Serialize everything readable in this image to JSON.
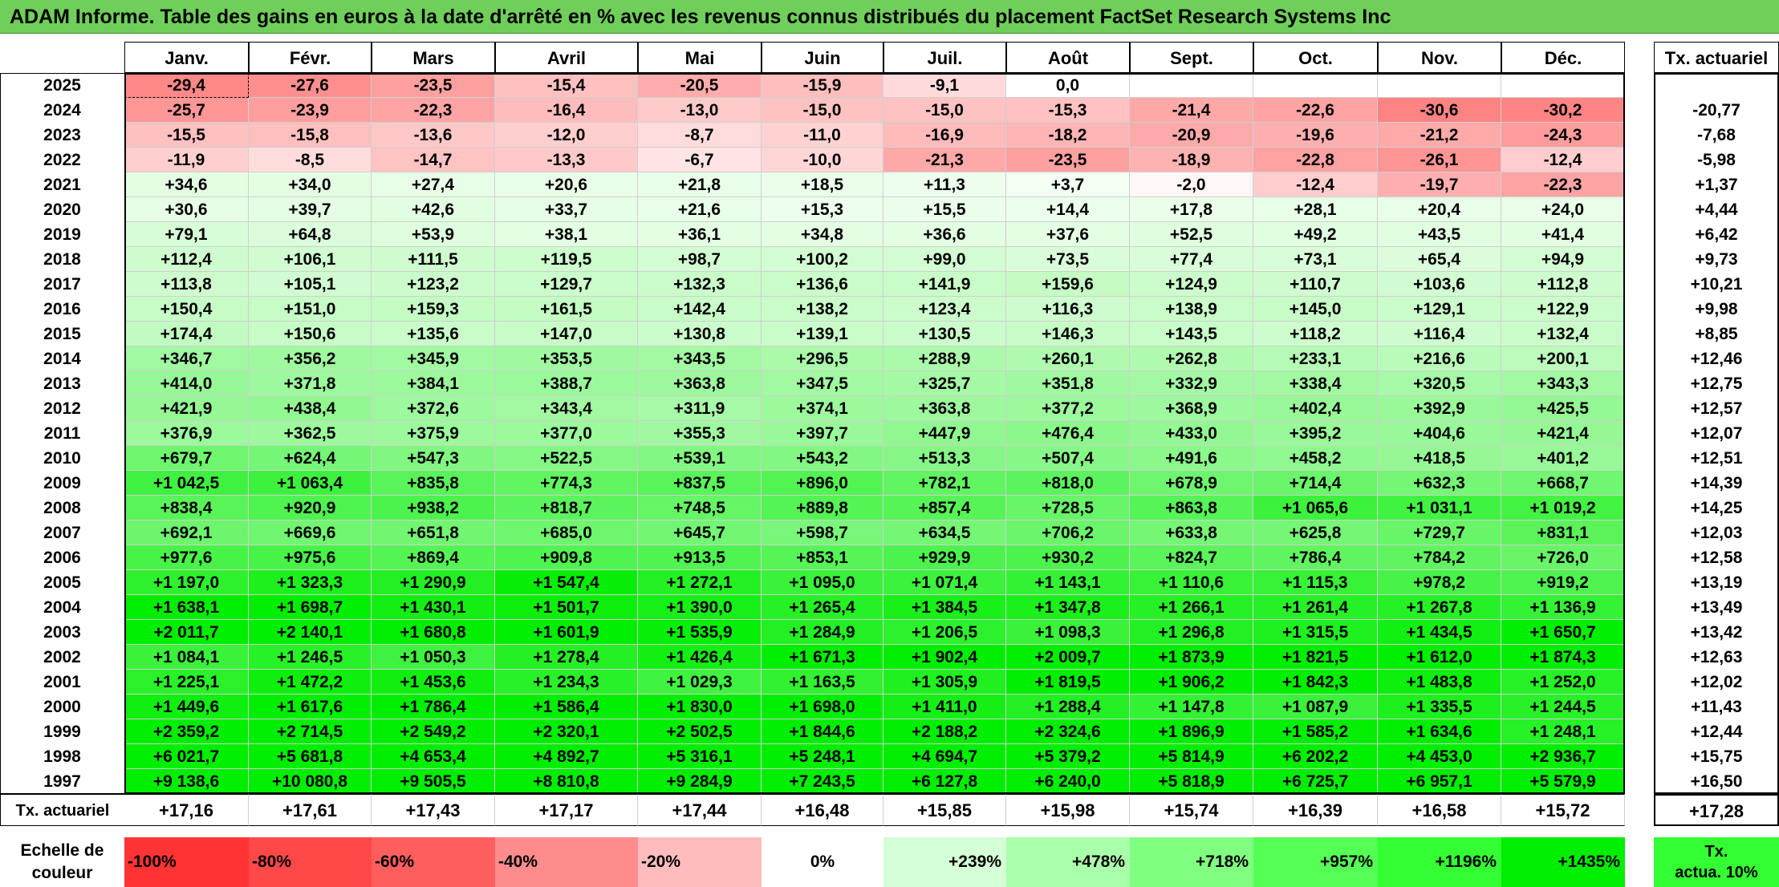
{
  "title": "ADAM Informe. Table des gains en euros à la date d'arrêté en % avec les revenus connus distribués du placement FactSet Research Systems Inc",
  "months": [
    "Janv.",
    "Févr.",
    "Mars",
    "Avril",
    "Mai",
    "Juin",
    "Juil.",
    "Août",
    "Sept.",
    "Oct.",
    "Nov.",
    "Déc."
  ],
  "tx_header": "Tx. actuariel",
  "rows": [
    {
      "year": "2025",
      "values": [
        "-29,4",
        "-27,6",
        "-23,5",
        "-15,4",
        "-20,5",
        "-15,9",
        "-9,1",
        "0,0",
        "",
        "",
        "",
        ""
      ],
      "tx": ""
    },
    {
      "year": "2024",
      "values": [
        "-25,7",
        "-23,9",
        "-22,3",
        "-16,4",
        "-13,0",
        "-15,0",
        "-15,0",
        "-15,3",
        "-21,4",
        "-22,6",
        "-30,6",
        "-30,2"
      ],
      "tx": "-20,77"
    },
    {
      "year": "2023",
      "values": [
        "-15,5",
        "-15,8",
        "-13,6",
        "-12,0",
        "-8,7",
        "-11,0",
        "-16,9",
        "-18,2",
        "-20,9",
        "-19,6",
        "-21,2",
        "-24,3"
      ],
      "tx": "-7,68"
    },
    {
      "year": "2022",
      "values": [
        "-11,9",
        "-8,5",
        "-14,7",
        "-13,3",
        "-6,7",
        "-10,0",
        "-21,3",
        "-23,5",
        "-18,9",
        "-22,8",
        "-26,1",
        "-12,4"
      ],
      "tx": "-5,98"
    },
    {
      "year": "2021",
      "values": [
        "+34,6",
        "+34,0",
        "+27,4",
        "+20,6",
        "+21,8",
        "+18,5",
        "+11,3",
        "+3,7",
        "-2,0",
        "-12,4",
        "-19,7",
        "-22,3"
      ],
      "tx": "+1,37"
    },
    {
      "year": "2020",
      "values": [
        "+30,6",
        "+39,7",
        "+42,6",
        "+33,7",
        "+21,6",
        "+15,3",
        "+15,5",
        "+14,4",
        "+17,8",
        "+28,1",
        "+20,4",
        "+24,0"
      ],
      "tx": "+4,44"
    },
    {
      "year": "2019",
      "values": [
        "+79,1",
        "+64,8",
        "+53,9",
        "+38,1",
        "+36,1",
        "+34,8",
        "+36,6",
        "+37,6",
        "+52,5",
        "+49,2",
        "+43,5",
        "+41,4"
      ],
      "tx": "+6,42"
    },
    {
      "year": "2018",
      "values": [
        "+112,4",
        "+106,1",
        "+111,5",
        "+119,5",
        "+98,7",
        "+100,2",
        "+99,0",
        "+73,5",
        "+77,4",
        "+73,1",
        "+65,4",
        "+94,9"
      ],
      "tx": "+9,73"
    },
    {
      "year": "2017",
      "values": [
        "+113,8",
        "+105,1",
        "+123,2",
        "+129,7",
        "+132,3",
        "+136,6",
        "+141,9",
        "+159,6",
        "+124,9",
        "+110,7",
        "+103,6",
        "+112,8"
      ],
      "tx": "+10,21"
    },
    {
      "year": "2016",
      "values": [
        "+150,4",
        "+151,0",
        "+159,3",
        "+161,5",
        "+142,4",
        "+138,2",
        "+123,4",
        "+116,3",
        "+138,9",
        "+145,0",
        "+129,1",
        "+122,9"
      ],
      "tx": "+9,98"
    },
    {
      "year": "2015",
      "values": [
        "+174,4",
        "+150,6",
        "+135,6",
        "+147,0",
        "+130,8",
        "+139,1",
        "+130,5",
        "+146,3",
        "+143,5",
        "+118,2",
        "+116,4",
        "+132,4"
      ],
      "tx": "+8,85"
    },
    {
      "year": "2014",
      "values": [
        "+346,7",
        "+356,2",
        "+345,9",
        "+353,5",
        "+343,5",
        "+296,5",
        "+288,9",
        "+260,1",
        "+262,8",
        "+233,1",
        "+216,6",
        "+200,1"
      ],
      "tx": "+12,46"
    },
    {
      "year": "2013",
      "values": [
        "+414,0",
        "+371,8",
        "+384,1",
        "+388,7",
        "+363,8",
        "+347,5",
        "+325,7",
        "+351,8",
        "+332,9",
        "+338,4",
        "+320,5",
        "+343,3"
      ],
      "tx": "+12,75"
    },
    {
      "year": "2012",
      "values": [
        "+421,9",
        "+438,4",
        "+372,6",
        "+343,4",
        "+311,9",
        "+374,1",
        "+363,8",
        "+377,2",
        "+368,9",
        "+402,4",
        "+392,9",
        "+425,5"
      ],
      "tx": "+12,57"
    },
    {
      "year": "2011",
      "values": [
        "+376,9",
        "+362,5",
        "+375,9",
        "+377,0",
        "+355,3",
        "+397,7",
        "+447,9",
        "+476,4",
        "+433,0",
        "+395,2",
        "+404,6",
        "+421,4"
      ],
      "tx": "+12,07"
    },
    {
      "year": "2010",
      "values": [
        "+679,7",
        "+624,4",
        "+547,3",
        "+522,5",
        "+539,1",
        "+543,2",
        "+513,3",
        "+507,4",
        "+491,6",
        "+458,2",
        "+418,5",
        "+401,2"
      ],
      "tx": "+12,51"
    },
    {
      "year": "2009",
      "values": [
        "+1 042,5",
        "+1 063,4",
        "+835,8",
        "+774,3",
        "+837,5",
        "+896,0",
        "+782,1",
        "+818,0",
        "+678,9",
        "+714,4",
        "+632,3",
        "+668,7"
      ],
      "tx": "+14,39"
    },
    {
      "year": "2008",
      "values": [
        "+838,4",
        "+920,9",
        "+938,2",
        "+818,7",
        "+748,5",
        "+889,8",
        "+857,4",
        "+728,5",
        "+863,8",
        "+1 065,6",
        "+1 031,1",
        "+1 019,2"
      ],
      "tx": "+14,25"
    },
    {
      "year": "2007",
      "values": [
        "+692,1",
        "+669,6",
        "+651,8",
        "+685,0",
        "+645,7",
        "+598,7",
        "+634,5",
        "+706,2",
        "+633,8",
        "+625,8",
        "+729,7",
        "+831,1"
      ],
      "tx": "+12,03"
    },
    {
      "year": "2006",
      "values": [
        "+977,6",
        "+975,6",
        "+869,4",
        "+909,8",
        "+913,5",
        "+853,1",
        "+929,9",
        "+930,2",
        "+824,7",
        "+786,4",
        "+784,2",
        "+726,0"
      ],
      "tx": "+12,58"
    },
    {
      "year": "2005",
      "values": [
        "+1 197,0",
        "+1 323,3",
        "+1 290,9",
        "+1 547,4",
        "+1 272,1",
        "+1 095,0",
        "+1 071,4",
        "+1 143,1",
        "+1 110,6",
        "+1 115,3",
        "+978,2",
        "+919,2"
      ],
      "tx": "+13,19"
    },
    {
      "year": "2004",
      "values": [
        "+1 638,1",
        "+1 698,7",
        "+1 430,1",
        "+1 501,7",
        "+1 390,0",
        "+1 265,4",
        "+1 384,5",
        "+1 347,8",
        "+1 266,1",
        "+1 261,4",
        "+1 267,8",
        "+1 136,9"
      ],
      "tx": "+13,49"
    },
    {
      "year": "2003",
      "values": [
        "+2 011,7",
        "+2 140,1",
        "+1 680,8",
        "+1 601,9",
        "+1 535,9",
        "+1 284,9",
        "+1 206,5",
        "+1 098,3",
        "+1 296,8",
        "+1 315,5",
        "+1 434,5",
        "+1 650,7"
      ],
      "tx": "+13,42"
    },
    {
      "year": "2002",
      "values": [
        "+1 084,1",
        "+1 246,5",
        "+1 050,3",
        "+1 278,4",
        "+1 426,4",
        "+1 671,3",
        "+1 902,4",
        "+2 009,7",
        "+1 873,9",
        "+1 821,5",
        "+1 612,0",
        "+1 874,3"
      ],
      "tx": "+12,63"
    },
    {
      "year": "2001",
      "values": [
        "+1 225,1",
        "+1 472,2",
        "+1 453,6",
        "+1 234,3",
        "+1 029,3",
        "+1 163,5",
        "+1 305,9",
        "+1 819,5",
        "+1 906,2",
        "+1 842,3",
        "+1 483,8",
        "+1 252,0"
      ],
      "tx": "+12,02"
    },
    {
      "year": "2000",
      "values": [
        "+1 449,6",
        "+1 617,6",
        "+1 786,4",
        "+1 586,4",
        "+1 830,0",
        "+1 698,0",
        "+1 411,0",
        "+1 288,4",
        "+1 147,8",
        "+1 087,9",
        "+1 335,5",
        "+1 244,5"
      ],
      "tx": "+11,43"
    },
    {
      "year": "1999",
      "values": [
        "+2 359,2",
        "+2 714,5",
        "+2 549,2",
        "+2 320,1",
        "+2 502,5",
        "+1 844,6",
        "+2 188,2",
        "+2 324,6",
        "+1 896,9",
        "+1 585,2",
        "+1 634,6",
        "+1 248,1"
      ],
      "tx": "+12,44"
    },
    {
      "year": "1998",
      "values": [
        "+6 021,7",
        "+5 681,8",
        "+4 653,4",
        "+4 892,7",
        "+5 316,1",
        "+5 248,1",
        "+4 694,7",
        "+5 379,2",
        "+5 814,9",
        "+6 202,2",
        "+4 453,0",
        "+2 936,7"
      ],
      "tx": "+15,75"
    },
    {
      "year": "1997",
      "values": [
        "+9 138,6",
        "+10 080,8",
        "+9 505,5",
        "+8 810,8",
        "+9 284,9",
        "+7 243,5",
        "+6 127,8",
        "+6 240,0",
        "+5 818,9",
        "+6 725,7",
        "+6 957,1",
        "+5 579,9"
      ],
      "tx": "+16,50"
    }
  ],
  "footer": {
    "label": "Tx. actuariel",
    "values": [
      "+17,16",
      "+17,61",
      "+17,43",
      "+17,17",
      "+17,44",
      "+16,48",
      "+15,85",
      "+15,98",
      "+15,74",
      "+16,39",
      "+16,58",
      "+15,72"
    ],
    "total": "+17,28"
  },
  "legend": {
    "label_line1": "Echelle de",
    "label_line2": "couleur",
    "steps": [
      {
        "text": "-100%",
        "color": "#ff3333"
      },
      {
        "text": "-80%",
        "color": "#ff4848"
      },
      {
        "text": "-60%",
        "color": "#ff5e5e"
      },
      {
        "text": "-40%",
        "color": "#ff8c8c"
      },
      {
        "text": "-20%",
        "color": "#ffbcbc"
      },
      {
        "text": "0%",
        "color": "#ffffff"
      },
      {
        "text": "+239%",
        "color": "#d5ffd5"
      },
      {
        "text": "+478%",
        "color": "#aaffaa"
      },
      {
        "text": "+718%",
        "color": "#80ff80"
      },
      {
        "text": "+957%",
        "color": "#55ff55"
      },
      {
        "text": "+1196%",
        "color": "#33ff33"
      },
      {
        "text": "+1435%",
        "color": "#00ee00"
      }
    ],
    "tx_line1": "Tx.",
    "tx_line2": "actua. 10%"
  }
}
